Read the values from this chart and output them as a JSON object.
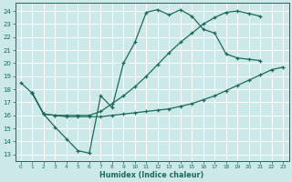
{
  "xlabel": "Humidex (Indice chaleur)",
  "bg_color": "#cde8e8",
  "grid_color": "#ffffff",
  "line_color": "#1a6b5a",
  "xlim": [
    -0.5,
    23.5
  ],
  "ylim": [
    12.5,
    24.6
  ],
  "xticks": [
    0,
    1,
    2,
    3,
    4,
    5,
    6,
    7,
    8,
    9,
    10,
    11,
    12,
    13,
    14,
    15,
    16,
    17,
    18,
    19,
    20,
    21,
    22,
    23
  ],
  "yticks": [
    13,
    14,
    15,
    16,
    17,
    18,
    19,
    20,
    21,
    22,
    23,
    24
  ],
  "line1_x": [
    0,
    1,
    2,
    3,
    4,
    5,
    6,
    7,
    8,
    9,
    10,
    11,
    12,
    13,
    14,
    15,
    16,
    17,
    18,
    19,
    20,
    21
  ],
  "line1_y": [
    18.5,
    17.7,
    16.1,
    15.1,
    14.2,
    13.3,
    13.1,
    17.5,
    16.6,
    20.0,
    21.6,
    23.9,
    24.1,
    23.7,
    24.1,
    23.6,
    22.6,
    22.3,
    20.7,
    20.4,
    20.3,
    20.2
  ],
  "line2_x": [
    1,
    2,
    3,
    4,
    5,
    6,
    7,
    8,
    9,
    10,
    11,
    12,
    13,
    14,
    15,
    16,
    17,
    18,
    19,
    20,
    21,
    22,
    23
  ],
  "line2_y": [
    17.7,
    16.1,
    16.0,
    15.9,
    15.9,
    15.9,
    15.9,
    16.0,
    16.1,
    16.2,
    16.3,
    16.4,
    16.5,
    16.7,
    16.9,
    17.2,
    17.5,
    17.9,
    18.3,
    18.7,
    19.1,
    19.5,
    19.7
  ],
  "line3_x": [
    1,
    2,
    3,
    4,
    5,
    6,
    7,
    8,
    9,
    10,
    11,
    12,
    13,
    14,
    15,
    16,
    17,
    18,
    19,
    20,
    21
  ],
  "line3_y": [
    17.7,
    16.1,
    16.0,
    16.0,
    16.0,
    16.0,
    16.3,
    16.9,
    17.5,
    18.2,
    19.0,
    19.9,
    20.8,
    21.6,
    22.3,
    23.0,
    23.5,
    23.9,
    24.0,
    23.8,
    23.6
  ]
}
